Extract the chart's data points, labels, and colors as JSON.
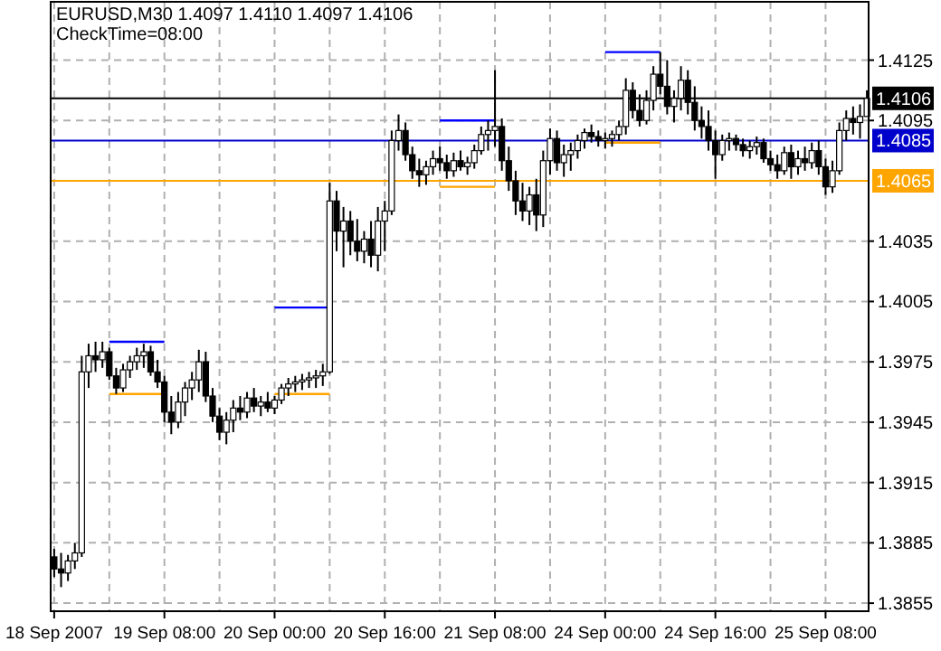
{
  "chart_data": {
    "type": "candlestick",
    "title": "EURUSD,M30  1.4097 1.4110 1.4097 1.4106",
    "subtitle": "CheckTime=08:00",
    "categories": [
      "18 Sep 2007",
      null,
      null,
      null,
      null,
      null,
      null,
      null,
      null,
      null,
      null,
      null,
      null,
      null,
      null,
      null,
      "19 Sep 08:00",
      null,
      null,
      null,
      null,
      null,
      null,
      null,
      null,
      null,
      null,
      null,
      null,
      null,
      null,
      null,
      "20 Sep 00:00",
      null,
      null,
      null,
      null,
      null,
      null,
      null,
      null,
      null,
      null,
      null,
      null,
      null,
      null,
      null,
      "20 Sep 16:00",
      null,
      null,
      null,
      null,
      null,
      null,
      null,
      null,
      null,
      null,
      null,
      null,
      null,
      null,
      null,
      "21 Sep 08:00",
      null,
      null,
      null,
      null,
      null,
      null,
      null,
      null,
      null,
      null,
      null,
      null,
      null,
      null,
      null,
      "24 Sep 00:00",
      null,
      null,
      null,
      null,
      null,
      null,
      null,
      null,
      null,
      null,
      null,
      null,
      null,
      null,
      null,
      "24 Sep 16:00",
      null,
      null,
      null,
      null,
      null,
      null,
      null,
      null,
      null,
      null,
      null,
      null,
      null,
      null,
      null,
      "25 Sep 08:00",
      null,
      null,
      null,
      null,
      null,
      null
    ],
    "ohlc": [
      [
        1.3878,
        1.3882,
        1.3868,
        1.3872
      ],
      [
        1.3872,
        1.388,
        1.3863,
        1.387
      ],
      [
        1.387,
        1.3879,
        1.3866,
        1.3876
      ],
      [
        1.3876,
        1.3885,
        1.3872,
        1.388
      ],
      [
        1.388,
        1.3978,
        1.3878,
        1.397
      ],
      [
        1.397,
        1.3984,
        1.3962,
        1.3978
      ],
      [
        1.3978,
        1.3985,
        1.397,
        1.3976
      ],
      [
        1.3976,
        1.3985,
        1.3972,
        1.398
      ],
      [
        1.398,
        1.3982,
        1.3966,
        1.3968
      ],
      [
        1.3968,
        1.3972,
        1.3959,
        1.3962
      ],
      [
        1.3962,
        1.3974,
        1.396,
        1.3971
      ],
      [
        1.3971,
        1.3978,
        1.3967,
        1.3975
      ],
      [
        1.3975,
        1.3982,
        1.3971,
        1.3978
      ],
      [
        1.3978,
        1.3984,
        1.3972,
        1.398
      ],
      [
        1.398,
        1.3983,
        1.3968,
        1.397
      ],
      [
        1.397,
        1.3976,
        1.3962,
        1.3965
      ],
      [
        1.3965,
        1.3968,
        1.3945,
        1.395
      ],
      [
        1.395,
        1.3958,
        1.3939,
        1.3945
      ],
      [
        1.3945,
        1.396,
        1.3942,
        1.3955
      ],
      [
        1.3955,
        1.3965,
        1.3948,
        1.3962
      ],
      [
        1.3962,
        1.397,
        1.3956,
        1.3966
      ],
      [
        1.3966,
        1.3981,
        1.396,
        1.3975
      ],
      [
        1.3975,
        1.398,
        1.3955,
        1.3958
      ],
      [
        1.3958,
        1.3962,
        1.3945,
        1.3948
      ],
      [
        1.3948,
        1.3952,
        1.3936,
        1.394
      ],
      [
        1.394,
        1.395,
        1.3934,
        1.3946
      ],
      [
        1.3946,
        1.3956,
        1.394,
        1.3952
      ],
      [
        1.3952,
        1.3958,
        1.3946,
        1.395
      ],
      [
        1.395,
        1.396,
        1.3947,
        1.3957
      ],
      [
        1.3957,
        1.3962,
        1.395,
        1.3953
      ],
      [
        1.3953,
        1.3958,
        1.3948,
        1.3955
      ],
      [
        1.3955,
        1.396,
        1.395,
        1.3952
      ],
      [
        1.3952,
        1.3958,
        1.3949,
        1.3956
      ],
      [
        1.3956,
        1.3964,
        1.3954,
        1.3962
      ],
      [
        1.3962,
        1.3967,
        1.3958,
        1.3964
      ],
      [
        1.3964,
        1.3968,
        1.396,
        1.3965
      ],
      [
        1.3965,
        1.3969,
        1.3961,
        1.3966
      ],
      [
        1.3966,
        1.397,
        1.3962,
        1.3967
      ],
      [
        1.3967,
        1.3971,
        1.3962,
        1.3968
      ],
      [
        1.3968,
        1.3974,
        1.3963,
        1.397
      ],
      [
        1.397,
        1.4064,
        1.3969,
        1.4055
      ],
      [
        1.4055,
        1.406,
        1.403,
        1.404
      ],
      [
        1.404,
        1.4052,
        1.4022,
        1.4045
      ],
      [
        1.4045,
        1.405,
        1.4028,
        1.4035
      ],
      [
        1.4035,
        1.4046,
        1.4025,
        1.403
      ],
      [
        1.403,
        1.404,
        1.4024,
        1.4036
      ],
      [
        1.4036,
        1.4045,
        1.4022,
        1.4028
      ],
      [
        1.4028,
        1.4052,
        1.402,
        1.4045
      ],
      [
        1.4045,
        1.4055,
        1.403,
        1.405
      ],
      [
        1.405,
        1.409,
        1.4048,
        1.4085
      ],
      [
        1.4085,
        1.4098,
        1.408,
        1.409
      ],
      [
        1.409,
        1.4094,
        1.4075,
        1.4078
      ],
      [
        1.4078,
        1.4082,
        1.4066,
        1.407
      ],
      [
        1.407,
        1.4076,
        1.4062,
        1.4068
      ],
      [
        1.4068,
        1.4075,
        1.4063,
        1.4072
      ],
      [
        1.4072,
        1.408,
        1.4068,
        1.4076
      ],
      [
        1.4076,
        1.4082,
        1.407,
        1.4074
      ],
      [
        1.4074,
        1.4078,
        1.4066,
        1.407
      ],
      [
        1.407,
        1.4079,
        1.4067,
        1.4075
      ],
      [
        1.4075,
        1.408,
        1.407,
        1.4072
      ],
      [
        1.4072,
        1.4077,
        1.4068,
        1.4074
      ],
      [
        1.4074,
        1.4083,
        1.4071,
        1.408
      ],
      [
        1.408,
        1.4092,
        1.4078,
        1.4088
      ],
      [
        1.4088,
        1.4095,
        1.408,
        1.409
      ],
      [
        1.409,
        1.412,
        1.4082,
        1.4092
      ],
      [
        1.4092,
        1.4096,
        1.407,
        1.4075
      ],
      [
        1.4075,
        1.4082,
        1.406,
        1.4065
      ],
      [
        1.4065,
        1.407,
        1.4048,
        1.4055
      ],
      [
        1.4055,
        1.4064,
        1.4045,
        1.405
      ],
      [
        1.405,
        1.4062,
        1.4043,
        1.4058
      ],
      [
        1.4058,
        1.4066,
        1.404,
        1.4048
      ],
      [
        1.4048,
        1.408,
        1.4042,
        1.4075
      ],
      [
        1.4075,
        1.4091,
        1.4068,
        1.4086
      ],
      [
        1.4086,
        1.409,
        1.407,
        1.4074
      ],
      [
        1.4074,
        1.4083,
        1.4067,
        1.4078
      ],
      [
        1.4078,
        1.4084,
        1.407,
        1.408
      ],
      [
        1.408,
        1.4088,
        1.4076,
        1.4085
      ],
      [
        1.4085,
        1.4091,
        1.4081,
        1.4089
      ],
      [
        1.4089,
        1.4093,
        1.4084,
        1.4087
      ],
      [
        1.4087,
        1.409,
        1.4082,
        1.4085
      ],
      [
        1.4085,
        1.4089,
        1.4081,
        1.4086
      ],
      [
        1.4086,
        1.409,
        1.4082,
        1.4088
      ],
      [
        1.4088,
        1.4095,
        1.4085,
        1.4092
      ],
      [
        1.4092,
        1.4116,
        1.4088,
        1.411
      ],
      [
        1.411,
        1.4114,
        1.4096,
        1.41
      ],
      [
        1.41,
        1.4108,
        1.4092,
        1.4095
      ],
      [
        1.4095,
        1.411,
        1.4093,
        1.4105
      ],
      [
        1.4105,
        1.4122,
        1.41,
        1.4118
      ],
      [
        1.4118,
        1.4129,
        1.4108,
        1.4112
      ],
      [
        1.4112,
        1.4125,
        1.4098,
        1.4102
      ],
      [
        1.4102,
        1.411,
        1.4094,
        1.4106
      ],
      [
        1.4106,
        1.4122,
        1.41,
        1.4115
      ],
      [
        1.4115,
        1.412,
        1.4098,
        1.4104
      ],
      [
        1.4104,
        1.4112,
        1.409,
        1.4095
      ],
      [
        1.4095,
        1.4102,
        1.4086,
        1.4092
      ],
      [
        1.4092,
        1.41,
        1.408,
        1.4085
      ],
      [
        1.4085,
        1.409,
        1.4066,
        1.4078
      ],
      [
        1.4078,
        1.4088,
        1.4075,
        1.4085
      ],
      [
        1.4085,
        1.4089,
        1.408,
        1.4086
      ],
      [
        1.4086,
        1.4088,
        1.408,
        1.4083
      ],
      [
        1.4083,
        1.4086,
        1.4077,
        1.408
      ],
      [
        1.408,
        1.4085,
        1.4076,
        1.4082
      ],
      [
        1.4082,
        1.4087,
        1.4078,
        1.4084
      ],
      [
        1.4084,
        1.4086,
        1.4074,
        1.4076
      ],
      [
        1.4076,
        1.408,
        1.407,
        1.4073
      ],
      [
        1.4073,
        1.4078,
        1.4066,
        1.407
      ],
      [
        1.407,
        1.4082,
        1.4068,
        1.4079
      ],
      [
        1.4079,
        1.4083,
        1.4066,
        1.4072
      ],
      [
        1.4072,
        1.408,
        1.4068,
        1.4076
      ],
      [
        1.4076,
        1.4082,
        1.407,
        1.4074
      ],
      [
        1.4074,
        1.4084,
        1.4071,
        1.408
      ],
      [
        1.408,
        1.4085,
        1.4068,
        1.4072
      ],
      [
        1.4072,
        1.4076,
        1.4058,
        1.4062
      ],
      [
        1.4062,
        1.4075,
        1.4059,
        1.407
      ],
      [
        1.407,
        1.4094,
        1.4068,
        1.409
      ],
      [
        1.409,
        1.41,
        1.4085,
        1.4096
      ],
      [
        1.4096,
        1.4102,
        1.4088,
        1.4094
      ],
      [
        1.4094,
        1.4103,
        1.4086,
        1.4097
      ],
      [
        1.4097,
        1.411,
        1.4097,
        1.4106
      ]
    ],
    "series": [
      {
        "type": "line",
        "color": "#0000ff",
        "values": [
          null,
          null,
          null,
          null,
          null,
          null,
          null,
          null,
          1.3985,
          1.3985,
          1.3985,
          1.3985,
          1.3985,
          1.3985,
          1.3985,
          1.3985,
          1.3985,
          null,
          null,
          null,
          null,
          null,
          null,
          null,
          null,
          null,
          null,
          null,
          null,
          null,
          null,
          null,
          1.4002,
          1.4002,
          1.4002,
          1.4002,
          1.4002,
          1.4002,
          1.4002,
          1.4002,
          1.4002,
          null,
          null,
          null,
          null,
          null,
          null,
          null,
          null,
          null,
          null,
          null,
          null,
          null,
          null,
          null,
          1.4095,
          1.4095,
          1.4095,
          1.4095,
          1.4095,
          1.4095,
          1.4095,
          1.4095,
          1.4095,
          null,
          null,
          null,
          null,
          null,
          null,
          null,
          null,
          null,
          null,
          null,
          null,
          null,
          null,
          null,
          1.4129,
          1.4129,
          1.4129,
          1.4129,
          1.4129,
          1.4129,
          1.4129,
          1.4129,
          1.4129,
          null,
          null,
          null,
          null,
          null,
          null,
          null,
          null,
          null,
          null,
          null,
          null,
          null,
          null,
          null,
          null,
          null,
          null,
          null,
          null,
          null,
          null,
          null,
          null,
          null,
          null,
          null,
          null,
          null,
          null
        ]
      },
      {
        "type": "line",
        "color": "#ffa500",
        "values": [
          null,
          null,
          null,
          null,
          null,
          null,
          null,
          null,
          1.3959,
          1.3959,
          1.3959,
          1.3959,
          1.3959,
          1.3959,
          1.3959,
          1.3959,
          1.3959,
          null,
          null,
          null,
          null,
          null,
          null,
          null,
          null,
          null,
          null,
          null,
          null,
          null,
          null,
          null,
          1.3959,
          1.3959,
          1.3959,
          1.3959,
          1.3959,
          1.3959,
          1.3959,
          1.3959,
          1.3959,
          null,
          null,
          null,
          null,
          null,
          null,
          null,
          null,
          null,
          null,
          null,
          null,
          null,
          null,
          null,
          1.4062,
          1.4062,
          1.4062,
          1.4062,
          1.4062,
          1.4062,
          1.4062,
          1.4062,
          1.4062,
          null,
          null,
          null,
          null,
          null,
          null,
          null,
          null,
          null,
          null,
          null,
          null,
          null,
          null,
          null,
          1.4084,
          1.4084,
          1.4084,
          1.4084,
          1.4084,
          1.4084,
          1.4084,
          1.4084,
          1.4084,
          null,
          null,
          null,
          null,
          null,
          null,
          null,
          null,
          null,
          null,
          null,
          null,
          null,
          null,
          null,
          null,
          null,
          null,
          null,
          null,
          null,
          null,
          null,
          null,
          null,
          null,
          null,
          null,
          null,
          null
        ]
      }
    ],
    "ref_lines": [
      {
        "axis": "y",
        "value": 1.4106,
        "label": "1.4106",
        "color": "#000000"
      },
      {
        "axis": "y",
        "value": 1.4085,
        "label": "1.4085",
        "color": "#0000cc"
      },
      {
        "axis": "y",
        "value": 1.4065,
        "label": "1.4065",
        "color": "#ffa500"
      }
    ],
    "ylim": [
      1.3851,
      1.4154
    ],
    "yticks": [
      1.3855,
      1.3885,
      1.3915,
      1.3945,
      1.3975,
      1.4005,
      1.4035,
      1.4095,
      1.4125
    ],
    "grid": true,
    "line_style": "solid"
  }
}
